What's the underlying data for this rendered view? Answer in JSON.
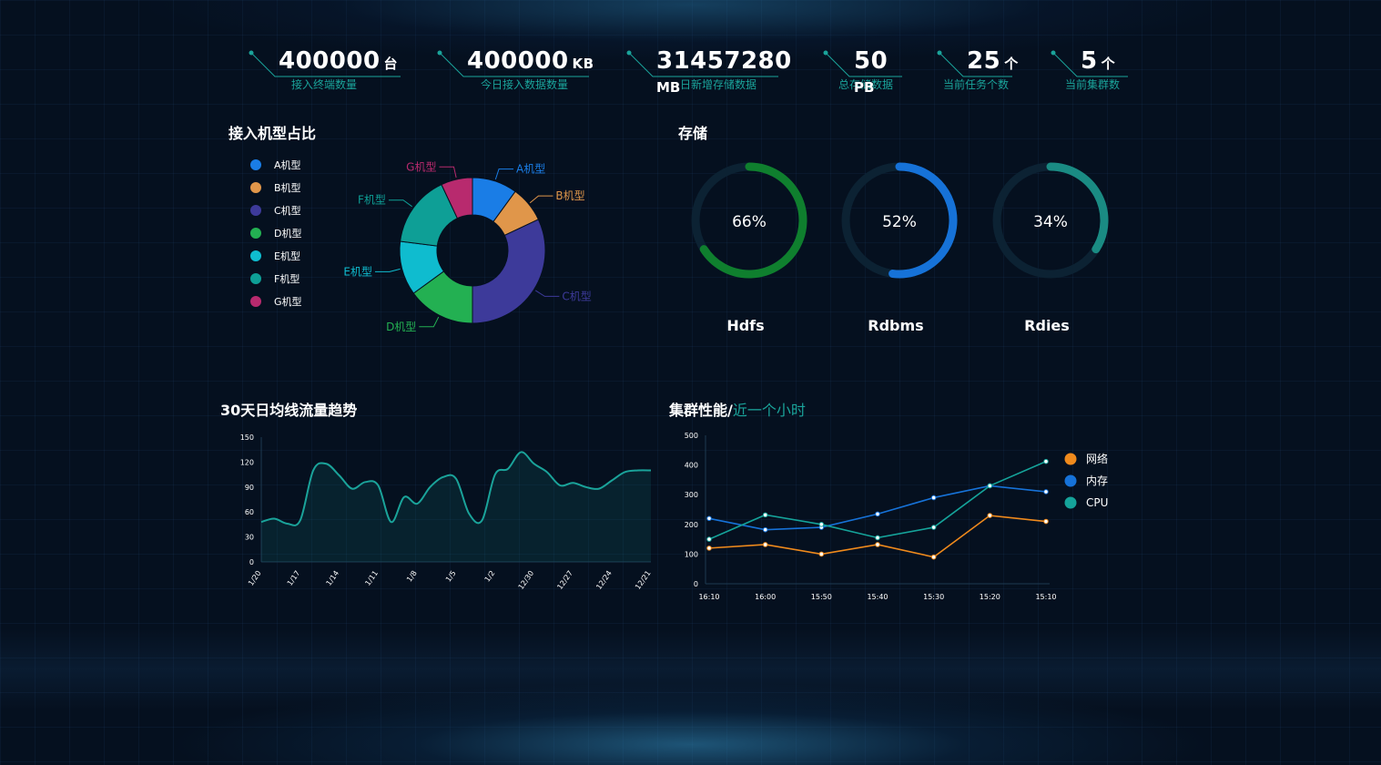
{
  "stats": [
    {
      "value": "400000",
      "unit": "台",
      "label": "接入终端数量"
    },
    {
      "value": "400000",
      "unit": "KB",
      "label": "今日接入数据数量"
    },
    {
      "value": "31457280",
      "unit": "MB",
      "label": "日新增存储数据"
    },
    {
      "value": "50",
      "unit": "PB",
      "label": "总存储数据"
    },
    {
      "value": "25",
      "unit": "个",
      "label": "当前任务个数"
    },
    {
      "value": "5",
      "unit": "个",
      "label": "当前集群数"
    }
  ],
  "pie_section": {
    "title": "接入机型占比"
  },
  "storage_section": {
    "title": "存储"
  },
  "trend_section": {
    "title": "30天日均线流量趋势"
  },
  "cluster_section": {
    "title": "集群性能/",
    "subtitle": "近一个小时"
  },
  "colors": {
    "accent": "#1aa39a",
    "background": "#05101f"
  },
  "chart_data": [
    {
      "type": "pie",
      "title": "接入机型占比",
      "donut": true,
      "legend_position": "left",
      "slices": [
        {
          "label": "A机型",
          "value": 10,
          "color": "#1a7de6"
        },
        {
          "label": "B机型",
          "value": 8,
          "color": "#e0964a"
        },
        {
          "label": "C机型",
          "value": 32,
          "color": "#3d3a9a"
        },
        {
          "label": "D机型",
          "value": 15,
          "color": "#23b052"
        },
        {
          "label": "E机型",
          "value": 12,
          "color": "#0fbccf"
        },
        {
          "label": "F机型",
          "value": 16,
          "color": "#0e9f96"
        },
        {
          "label": "G机型",
          "value": 7,
          "color": "#b82a6e"
        }
      ]
    },
    {
      "type": "pie",
      "title": "存储",
      "rings": [
        {
          "name": "Hdfs",
          "percent": 66,
          "label": "66%",
          "color": "#0f7f2e"
        },
        {
          "name": "Rdbms",
          "percent": 52,
          "label": "52%",
          "color": "#1672d8"
        },
        {
          "name": "Rdies",
          "percent": 34,
          "label": "34%",
          "color": "#1a8b83"
        }
      ]
    },
    {
      "type": "area",
      "title": "30天日均线流量趋势",
      "x": [
        "1/20",
        "1/19",
        "1/18",
        "1/17",
        "1/16",
        "1/15",
        "1/14",
        "1/13",
        "1/12",
        "1/11",
        "1/10",
        "1/9",
        "1/8",
        "1/7",
        "1/6",
        "1/5",
        "1/4",
        "1/3",
        "1/2",
        "1/1",
        "12/31",
        "12/30",
        "12/29",
        "12/28",
        "12/27",
        "12/26",
        "12/25",
        "12/24",
        "12/23",
        "12/22",
        "12/21"
      ],
      "x_ticks": [
        "1/20",
        "1/17",
        "1/14",
        "1/11",
        "1/8",
        "1/5",
        "1/2",
        "12/30",
        "12/27",
        "12/24",
        "12/21"
      ],
      "values": [
        48,
        52,
        46,
        50,
        110,
        118,
        104,
        88,
        96,
        92,
        48,
        78,
        70,
        90,
        102,
        100,
        58,
        50,
        105,
        112,
        132,
        118,
        108,
        92,
        95,
        90,
        88,
        98,
        108,
        110,
        110
      ],
      "ylim": [
        0,
        150
      ],
      "y_ticks": [
        0,
        30,
        60,
        90,
        120,
        150
      ],
      "color": "#1aa39a"
    },
    {
      "type": "line",
      "title": "集群性能/近一个小时",
      "categories": [
        "16:10",
        "16:00",
        "15:50",
        "15:40",
        "15:30",
        "15:20",
        "15:10"
      ],
      "ylim": [
        0,
        500
      ],
      "y_ticks": [
        0,
        100,
        200,
        300,
        400,
        500
      ],
      "legend_position": "right",
      "series": [
        {
          "name": "网络",
          "values": [
            120,
            132,
            100,
            132,
            90,
            230,
            210
          ],
          "color": "#f08a1c"
        },
        {
          "name": "内存",
          "values": [
            220,
            182,
            190,
            235,
            290,
            330,
            310
          ],
          "color": "#1672d8"
        },
        {
          "name": "CPU",
          "values": [
            150,
            232,
            200,
            155,
            190,
            330,
            412
          ],
          "color": "#15a39a"
        }
      ]
    }
  ]
}
